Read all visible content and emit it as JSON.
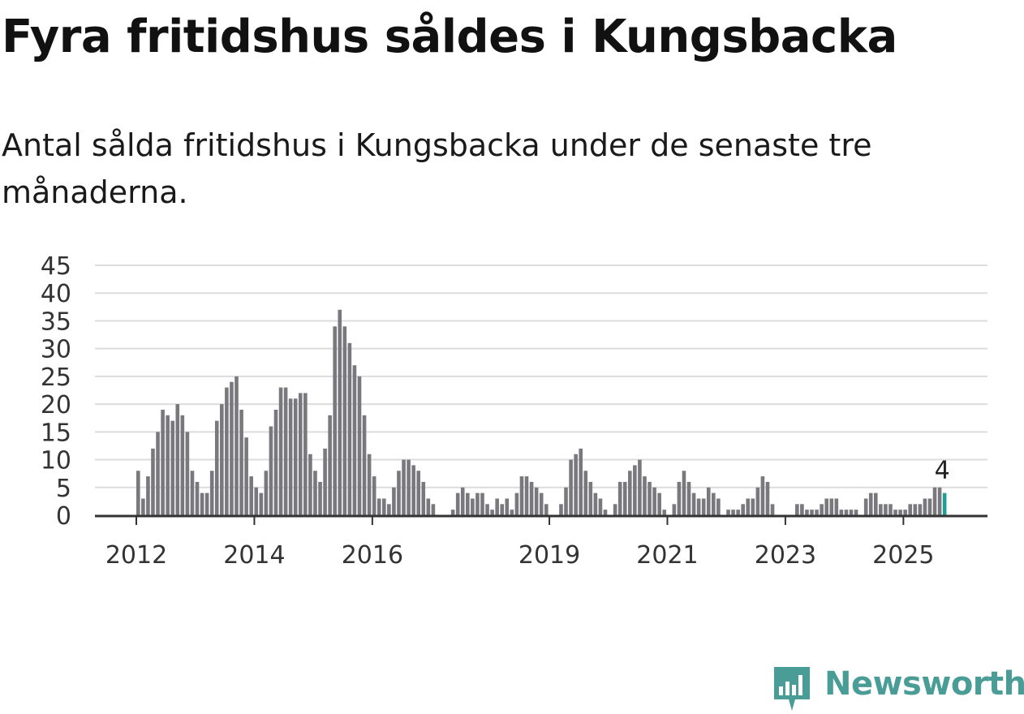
{
  "header": {
    "title": "Fyra fritidshus såldes i Kungsbacka",
    "subtitle": "Antal sålda fritidshus i Kungsbacka under de senaste tre månaderna."
  },
  "brand": {
    "name": "Newsworthy",
    "color": "#4a9c97",
    "icon": "newsworthy-chart-pin-icon"
  },
  "chart_data": {
    "type": "bar",
    "start": "2012-01",
    "x_tick_labels": [
      "2012",
      "2014",
      "2016",
      "2019",
      "2021",
      "2023",
      "2025"
    ],
    "y_ticks": [
      0,
      5,
      10,
      15,
      20,
      25,
      30,
      35,
      40,
      45
    ],
    "ylim": [
      0,
      45
    ],
    "grid": true,
    "bar_color": "#79787d",
    "highlight_color": "#1e9e95",
    "last_value_label": "4",
    "values": [
      8,
      3,
      7,
      12,
      15,
      19,
      18,
      17,
      20,
      18,
      15,
      8,
      6,
      4,
      4,
      8,
      17,
      20,
      23,
      24,
      25,
      19,
      14,
      7,
      5,
      4,
      8,
      16,
      19,
      23,
      23,
      21,
      21,
      22,
      22,
      11,
      8,
      6,
      12,
      18,
      34,
      37,
      34,
      31,
      27,
      25,
      18,
      11,
      7,
      3,
      3,
      2,
      5,
      8,
      10,
      10,
      9,
      8,
      6,
      3,
      2,
      0,
      0,
      0,
      1,
      4,
      5,
      4,
      3,
      4,
      4,
      2,
      1,
      3,
      2,
      3,
      1,
      4,
      7,
      7,
      6,
      5,
      4,
      2,
      0,
      0,
      2,
      5,
      10,
      11,
      12,
      8,
      6,
      4,
      3,
      1,
      0,
      2,
      6,
      6,
      8,
      9,
      10,
      7,
      6,
      5,
      4,
      1,
      0,
      2,
      6,
      8,
      6,
      4,
      3,
      3,
      5,
      4,
      3,
      0,
      1,
      1,
      1,
      2,
      3,
      3,
      5,
      7,
      6,
      2,
      0,
      0,
      0,
      0,
      2,
      2,
      1,
      1,
      1,
      2,
      3,
      3,
      3,
      1,
      1,
      1,
      1,
      0,
      3,
      4,
      4,
      2,
      2,
      2,
      1,
      1,
      1,
      2,
      2,
      2,
      3,
      3,
      5,
      5,
      4
    ]
  }
}
